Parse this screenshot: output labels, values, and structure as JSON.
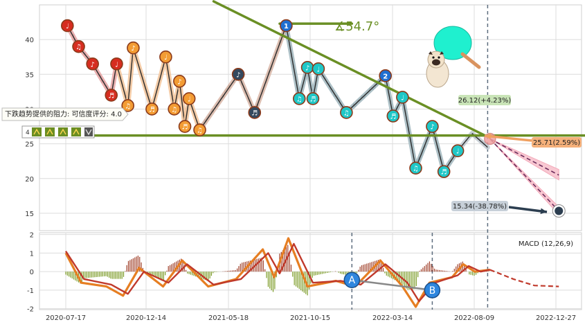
{
  "chart_data": [
    {
      "type": "line",
      "panel": "price",
      "x_tick_labels": [
        "2020-07-17",
        "2020-12-14",
        "2021-05-18",
        "2021-10-15",
        "2022-03-14",
        "2022-08-09",
        "2022-12-27"
      ],
      "y_ticks": [
        15,
        20,
        25,
        30,
        35,
        40
      ],
      "ylim": [
        12.5,
        45
      ],
      "grid": true,
      "series": [
        {
          "role": "price",
          "color": "#3d4a5a",
          "points": [
            [
              "2020-07-20",
              42
            ],
            [
              "2020-08-10",
              39
            ],
            [
              "2020-09-05",
              36.5
            ],
            [
              "2020-10-10",
              32
            ],
            [
              "2020-10-20",
              36.5
            ],
            [
              "2020-11-10",
              30.5
            ],
            [
              "2020-11-20",
              38.8
            ],
            [
              "2020-12-25",
              30
            ],
            [
              "2021-01-20",
              37.5
            ],
            [
              "2021-02-05",
              30
            ],
            [
              "2021-02-15",
              34
            ],
            [
              "2021-02-25",
              27.5
            ],
            [
              "2021-03-05",
              31.5
            ],
            [
              "2021-03-25",
              27
            ],
            [
              "2021-06-05",
              35
            ],
            [
              "2021-07-05",
              29.5
            ],
            [
              "2021-09-01",
              42
            ],
            [
              "2021-09-25",
              31.5
            ],
            [
              "2021-10-10",
              36
            ],
            [
              "2021-10-20",
              31.5
            ],
            [
              "2021-10-30",
              35.8
            ],
            [
              "2021-12-20",
              29.5
            ],
            [
              "2022-03-01",
              34.8
            ],
            [
              "2022-03-15",
              29
            ],
            [
              "2022-04-01",
              31.7
            ],
            [
              "2022-04-25",
              21.5
            ],
            [
              "2022-05-25",
              27.5
            ],
            [
              "2022-06-15",
              21
            ],
            [
              "2022-07-10",
              24
            ],
            [
              "2022-08-05",
              26.5
            ],
            [
              "2022-09-01",
              24.5
            ]
          ]
        },
        {
          "role": "projection",
          "color": "#f5a6c0",
          "style": "dashed",
          "points": [
            [
              "2022-09-05",
              25.71
            ],
            [
              "2023-01-01",
              20.5
            ]
          ]
        }
      ],
      "annotations": [
        {
          "text": "下跌趋势提供的阻力: 可信度评分: 4.0"
        },
        {
          "text": "∡54.7°"
        },
        {
          "text": "26.12(+4.23%)"
        },
        {
          "text": "25.71(2.59%)"
        },
        {
          "text": "15.34(-38.78%)"
        },
        {
          "text": "1"
        },
        {
          "text": "2"
        },
        {
          "text": "4"
        }
      ],
      "trendlines": [
        {
          "name": "downtrend-resistance",
          "color": "#6a8f24",
          "from": [
            "2021-04-20",
            45.5
          ],
          "to": [
            "2022-09-01",
            26
          ]
        },
        {
          "name": "horizontal-support",
          "color": "#6a8f24",
          "from": [
            "2020-06-01",
            26.2
          ],
          "to": [
            "2023-02-15",
            26.2
          ]
        },
        {
          "name": "top-level",
          "color": "#6a8f24",
          "from": [
            "2021-08-20",
            42.3
          ],
          "to": [
            "2021-12-30",
            42.3
          ]
        }
      ],
      "targets": [
        {
          "date": "2022-09-05",
          "value": 25.71,
          "color": "#f0a060"
        },
        {
          "date": "2023-01-01",
          "value": 15.34,
          "color": "#34495e"
        }
      ]
    },
    {
      "type": "line",
      "panel": "macd",
      "title": "MACD (12,26,9)",
      "y_ticks": [
        -2,
        -1,
        0,
        1,
        2
      ],
      "ylim": [
        -2.05,
        2.1
      ],
      "grid": true,
      "series": [
        {
          "role": "macd",
          "color": "#e67e22",
          "points": [
            [
              "2020-07-17",
              1.0
            ],
            [
              "2020-08-15",
              -0.6
            ],
            [
              "2020-10-01",
              -0.8
            ],
            [
              "2020-11-01",
              -1.3
            ],
            [
              "2020-12-01",
              0.2
            ],
            [
              "2021-01-15",
              -0.8
            ],
            [
              "2021-02-20",
              0.6
            ],
            [
              "2021-04-10",
              -0.8
            ],
            [
              "2021-06-01",
              -0.4
            ],
            [
              "2021-07-20",
              1.2
            ],
            [
              "2021-08-10",
              -0.3
            ],
            [
              "2021-09-05",
              1.8
            ],
            [
              "2021-10-10",
              -0.8
            ],
            [
              "2021-12-01",
              -0.5
            ],
            [
              "2022-01-05",
              -0.8
            ],
            [
              "2022-02-20",
              0.6
            ],
            [
              "2022-04-01",
              -0.8
            ],
            [
              "2022-04-25",
              -1.9
            ],
            [
              "2022-05-20",
              -0.6
            ],
            [
              "2022-06-30",
              -0.3
            ],
            [
              "2022-07-20",
              0.4
            ],
            [
              "2022-08-10",
              0.0
            ],
            [
              "2022-09-05",
              0.1
            ]
          ]
        },
        {
          "role": "signal",
          "color": "#c0392b",
          "points": [
            [
              "2020-07-17",
              1.1
            ],
            [
              "2020-08-20",
              -0.4
            ],
            [
              "2020-10-10",
              -0.7
            ],
            [
              "2020-11-10",
              -1.2
            ],
            [
              "2020-12-10",
              0.0
            ],
            [
              "2021-01-25",
              -0.6
            ],
            [
              "2021-03-01",
              0.4
            ],
            [
              "2021-04-20",
              -0.7
            ],
            [
              "2021-06-10",
              -0.4
            ],
            [
              "2021-07-30",
              1.0
            ],
            [
              "2021-08-20",
              -0.1
            ],
            [
              "2021-09-15",
              1.5
            ],
            [
              "2021-10-20",
              -0.6
            ],
            [
              "2021-12-10",
              -0.5
            ],
            [
              "2022-01-15",
              -0.7
            ],
            [
              "2022-03-01",
              0.4
            ],
            [
              "2022-04-10",
              -0.6
            ],
            [
              "2022-05-01",
              -1.6
            ],
            [
              "2022-05-30",
              -0.6
            ],
            [
              "2022-07-10",
              -0.2
            ],
            [
              "2022-07-30",
              0.3
            ],
            [
              "2022-08-20",
              0.0
            ],
            [
              "2022-09-05",
              0.1
            ]
          ]
        },
        {
          "role": "projection",
          "color": "#c0392b",
          "style": "dashed",
          "points": [
            [
              "2022-09-05",
              0.1
            ],
            [
              "2022-10-15",
              -0.4
            ],
            [
              "2022-11-20",
              -0.75
            ],
            [
              "2023-01-01",
              -0.8
            ]
          ]
        }
      ],
      "markers": [
        {
          "label": "A",
          "date": "2021-12-30",
          "value": -0.45
        },
        {
          "label": "B",
          "date": "2022-05-25",
          "value": -1.0
        }
      ]
    }
  ],
  "colors": {
    "downtrend_line": "#6a8f24",
    "ann_green_bg": "#c9e4b7",
    "ann_orange_bg": "#f5b07a",
    "ann_grey_bg": "#c7d0d9",
    "grid": "#dcdcdc"
  },
  "decor": {
    "mascot": "pug-with-ping-pong-paddle",
    "toolbar_icons": [
      "bull-icon",
      "bull-icon",
      "bull-icon",
      "bull-icon",
      "bear-icon"
    ]
  }
}
